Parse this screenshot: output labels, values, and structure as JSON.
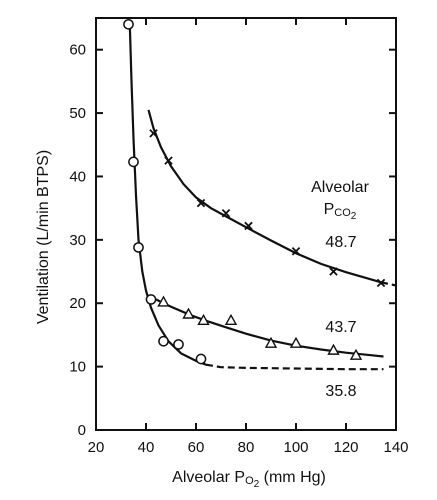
{
  "chart_data": {
    "type": "scatter",
    "title": "",
    "xlabel": "Alveolar P",
    "xlabel_sub": "O",
    "xlabel_sub2": "2",
    "xlabel_unit": " (mm Hg)",
    "ylabel": "Ventilation (L/min BTPS)",
    "xlim": [
      20,
      140
    ],
    "ylim": [
      0,
      65
    ],
    "xticks": [
      20,
      40,
      60,
      80,
      100,
      120,
      140
    ],
    "yticks": [
      0,
      10,
      20,
      30,
      40,
      50,
      60
    ],
    "grid": false,
    "legend_title_line1": "Alveolar",
    "legend_title_line2_main": "P",
    "legend_title_line2_sub": "CO",
    "legend_title_line2_sub2": "2",
    "series": [
      {
        "name": "48.7",
        "marker": "x",
        "points": [
          [
            43,
            46.8
          ],
          [
            49,
            42.5
          ],
          [
            62,
            35.8
          ],
          [
            72,
            34.2
          ],
          [
            81,
            32.2
          ],
          [
            100,
            28.2
          ],
          [
            115,
            25.0
          ],
          [
            134,
            23.2
          ]
        ],
        "curve": [
          [
            41,
            50.5
          ],
          [
            43,
            47.6
          ],
          [
            46,
            44.6
          ],
          [
            50,
            41.6
          ],
          [
            55,
            38.8
          ],
          [
            60,
            36.7
          ],
          [
            66,
            35.0
          ],
          [
            72,
            33.7
          ],
          [
            80,
            32.0
          ],
          [
            90,
            29.9
          ],
          [
            100,
            27.9
          ],
          [
            110,
            26.2
          ],
          [
            120,
            24.9
          ],
          [
            128,
            24.0
          ],
          [
            134,
            23.3
          ]
        ],
        "curve_dash_end": [
          [
            134,
            23.3
          ],
          [
            140,
            22.8
          ]
        ]
      },
      {
        "name": "43.7",
        "marker": "triangle",
        "points": [
          [
            47,
            20.2
          ],
          [
            57,
            18.3
          ],
          [
            63,
            17.3
          ],
          [
            74,
            17.3
          ],
          [
            90,
            13.7
          ],
          [
            100,
            13.7
          ],
          [
            115,
            12.6
          ],
          [
            124,
            11.8
          ]
        ],
        "curve": [
          [
            44,
            20.6
          ],
          [
            48,
            19.8
          ],
          [
            52,
            19.1
          ],
          [
            58,
            18.1
          ],
          [
            65,
            17.1
          ],
          [
            72,
            16.2
          ],
          [
            80,
            15.2
          ],
          [
            90,
            14.1
          ],
          [
            100,
            13.3
          ],
          [
            110,
            12.7
          ],
          [
            120,
            12.2
          ],
          [
            130,
            11.8
          ],
          [
            135,
            11.6
          ]
        ]
      },
      {
        "name": "35.8",
        "marker": "circle",
        "points": [
          [
            33,
            64.0
          ],
          [
            35,
            42.3
          ],
          [
            37,
            28.8
          ],
          [
            42,
            20.6
          ],
          [
            47,
            14.0
          ],
          [
            53,
            13.5
          ],
          [
            62,
            11.2
          ]
        ],
        "curve": [
          [
            33.5,
            64.0
          ],
          [
            34.2,
            55.0
          ],
          [
            35.0,
            46.0
          ],
          [
            36.0,
            37.0
          ],
          [
            37.0,
            30.0
          ],
          [
            38.5,
            25.0
          ],
          [
            40.0,
            22.0
          ],
          [
            42.0,
            19.3
          ],
          [
            45.0,
            16.5
          ],
          [
            49.0,
            14.0
          ],
          [
            54.0,
            12.1
          ],
          [
            60.0,
            10.9
          ],
          [
            64.0,
            10.3
          ]
        ],
        "curve_dash_end": [
          [
            64,
            10.3
          ],
          [
            70,
            9.9
          ],
          [
            80,
            9.8
          ],
          [
            100,
            9.7
          ],
          [
            120,
            9.6
          ],
          [
            135,
            9.6
          ]
        ]
      }
    ]
  }
}
